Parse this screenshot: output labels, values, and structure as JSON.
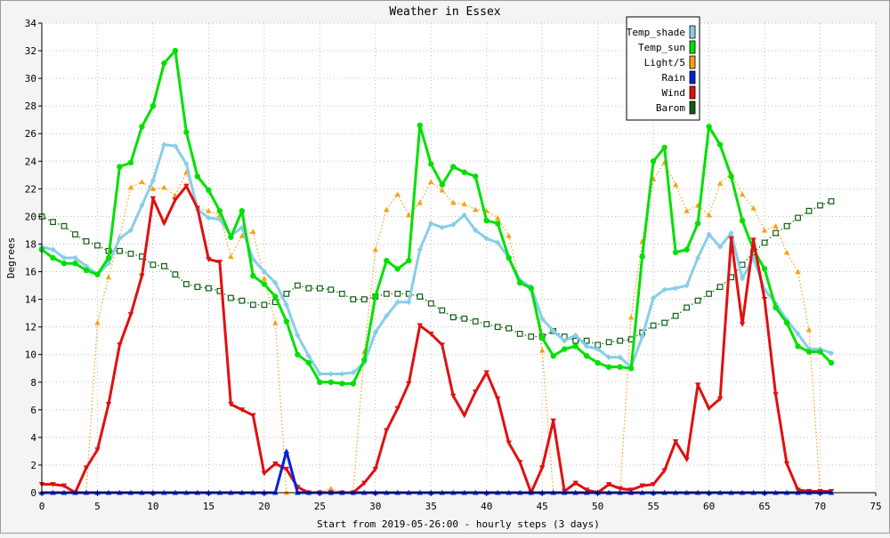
{
  "chart_data": {
    "type": "line",
    "title": "Weather in Essex",
    "xlabel": "Start from 2019-05-26:00 - hourly steps (3 days)",
    "ylabel": "Degrees",
    "xlim": [
      0,
      75
    ],
    "ylim": [
      0,
      34
    ],
    "xticks": [
      0,
      5,
      10,
      15,
      20,
      25,
      30,
      35,
      40,
      45,
      50,
      55,
      60,
      65,
      70,
      75
    ],
    "yticks": [
      0,
      2,
      4,
      6,
      8,
      10,
      12,
      14,
      16,
      18,
      20,
      22,
      24,
      26,
      28,
      30,
      32,
      34
    ],
    "grid": true,
    "legend_position": "top-right",
    "series": [
      {
        "name": "Temp_shade",
        "color": "#87cee8",
        "marker": "diamond",
        "style": "solid-thick",
        "values": [
          17.8,
          17.6,
          17.0,
          17.0,
          16.4,
          15.8,
          16.6,
          18.4,
          19.0,
          20.8,
          22.6,
          25.2,
          25.1,
          23.8,
          20.5,
          19.9,
          19.8,
          18.6,
          19.2,
          16.9,
          16.0,
          15.2,
          13.6,
          11.4,
          9.9,
          8.6,
          8.6,
          8.6,
          8.7,
          9.4,
          11.6,
          12.8,
          13.8,
          13.8,
          17.6,
          19.5,
          19.2,
          19.4,
          20.1,
          19.0,
          18.4,
          18.1,
          17.0,
          15.4,
          14.9,
          12.6,
          11.7,
          11.0,
          11.4,
          10.6,
          10.4,
          9.8,
          9.8,
          9.1,
          11.3,
          14.1,
          14.7,
          14.8,
          15.0,
          17.0,
          18.7,
          17.8,
          18.8,
          15.5,
          17.0,
          14.7,
          13.7,
          12.5,
          11.5,
          10.4,
          10.4,
          10.1
        ]
      },
      {
        "name": "Temp_sun",
        "color": "#00e000",
        "marker": "circle",
        "style": "solid-thick",
        "values": [
          17.6,
          17.0,
          16.6,
          16.6,
          16.1,
          15.8,
          17.0,
          23.6,
          23.9,
          26.5,
          28.0,
          31.1,
          32.0,
          26.1,
          22.9,
          21.9,
          20.4,
          18.5,
          20.4,
          15.7,
          15.1,
          14.2,
          12.4,
          10.0,
          9.4,
          8.0,
          8.0,
          7.9,
          7.9,
          9.6,
          14.2,
          16.8,
          16.2,
          16.8,
          26.6,
          23.8,
          22.3,
          23.6,
          23.2,
          22.9,
          19.7,
          19.5,
          17.0,
          15.2,
          14.8,
          11.2,
          9.9,
          10.4,
          10.6,
          9.9,
          9.4,
          9.1,
          9.1,
          9.0,
          17.1,
          24.0,
          25.0,
          17.4,
          17.6,
          19.5,
          26.5,
          25.2,
          22.9,
          19.7,
          17.6,
          16.2,
          13.4,
          12.3,
          10.6,
          10.2,
          10.2,
          9.4
        ]
      },
      {
        "name": "Light/5",
        "color": "#f8a010",
        "marker": "triangle-up",
        "style": "dotted",
        "values": [
          0,
          0,
          0,
          0,
          0,
          12.3,
          15.6,
          18.5,
          22.1,
          22.5,
          22.0,
          22.1,
          21.5,
          23.2,
          20.6,
          20.4,
          20.1,
          17.1,
          18.6,
          18.9,
          15.5,
          12.3,
          0,
          0,
          0,
          0,
          0.3,
          0,
          0,
          10.2,
          17.6,
          20.5,
          21.6,
          20.1,
          21.0,
          22.5,
          21.9,
          21.0,
          20.9,
          20.5,
          20.4,
          19.9,
          18.6,
          15.2,
          14.9,
          10.3,
          0,
          0,
          0,
          0,
          0,
          0,
          0,
          12.7,
          18.2,
          22.7,
          23.9,
          22.3,
          20.4,
          20.8,
          20.1,
          22.4,
          23.1,
          21.6,
          20.6,
          19.0,
          19.3,
          17.4,
          16.0,
          11.8,
          0,
          0
        ]
      },
      {
        "name": "Rain",
        "color": "#0020e0",
        "marker": "triangle-up",
        "style": "solid-thick",
        "values": [
          0,
          0,
          0,
          0,
          0,
          0,
          0,
          0,
          0,
          0,
          0,
          0,
          0,
          0,
          0,
          0,
          0,
          0,
          0,
          0,
          0,
          0,
          3.0,
          0,
          0,
          0,
          0,
          0,
          0,
          0,
          0,
          0,
          0,
          0,
          0,
          0,
          0,
          0,
          0,
          0,
          0,
          0,
          0,
          0,
          0,
          0,
          0,
          0,
          0,
          0,
          0,
          0,
          0,
          0,
          0,
          0,
          0,
          0,
          0,
          0,
          0,
          0,
          0,
          0,
          0,
          0,
          0,
          0,
          0,
          0,
          0,
          0
        ]
      },
      {
        "name": "Wind",
        "color": "#e01010",
        "marker": "triangle-down",
        "style": "solid-thick",
        "values": [
          0.6,
          0.6,
          0.5,
          0,
          1.8,
          3.1,
          6.4,
          10.7,
          12.9,
          15.7,
          21.3,
          19.5,
          21.2,
          22.2,
          20.6,
          16.9,
          16.7,
          6.4,
          6.0,
          5.6,
          1.4,
          2.1,
          1.7,
          0.4,
          0,
          0,
          0,
          0,
          0,
          0.7,
          1.7,
          4.5,
          6.1,
          7.9,
          12.1,
          11.5,
          10.7,
          7.0,
          5.6,
          7.3,
          8.7,
          6.8,
          3.6,
          2.2,
          0,
          1.8,
          5.2,
          0.1,
          0.7,
          0.2,
          0,
          0.6,
          0.3,
          0.2,
          0.5,
          0.6,
          1.6,
          3.7,
          2.4,
          7.8,
          6.1,
          6.8,
          18.4,
          12.2,
          18.3,
          14.0,
          7.1,
          2.1,
          0.2,
          0.1,
          0.1,
          0.1
        ]
      },
      {
        "name": "Barom",
        "color": "#106010",
        "marker": "square",
        "style": "dotted",
        "values": [
          20.0,
          19.6,
          19.3,
          18.7,
          18.2,
          17.9,
          17.5,
          17.5,
          17.3,
          17.1,
          16.5,
          16.4,
          15.8,
          15.1,
          14.9,
          14.8,
          14.6,
          14.1,
          13.9,
          13.6,
          13.6,
          13.8,
          14.4,
          15.0,
          14.8,
          14.8,
          14.7,
          14.4,
          14.0,
          14.0,
          14.2,
          14.4,
          14.4,
          14.4,
          14.2,
          13.7,
          13.2,
          12.7,
          12.6,
          12.4,
          12.2,
          12.0,
          11.9,
          11.5,
          11.3,
          11.3,
          11.7,
          11.3,
          11.0,
          11.0,
          10.7,
          10.9,
          11.0,
          11.1,
          11.6,
          12.1,
          12.3,
          12.8,
          13.4,
          13.9,
          14.4,
          14.9,
          15.6,
          16.5,
          17.4,
          18.1,
          18.8,
          19.3,
          19.9,
          20.4,
          20.8,
          21.1
        ]
      }
    ]
  }
}
